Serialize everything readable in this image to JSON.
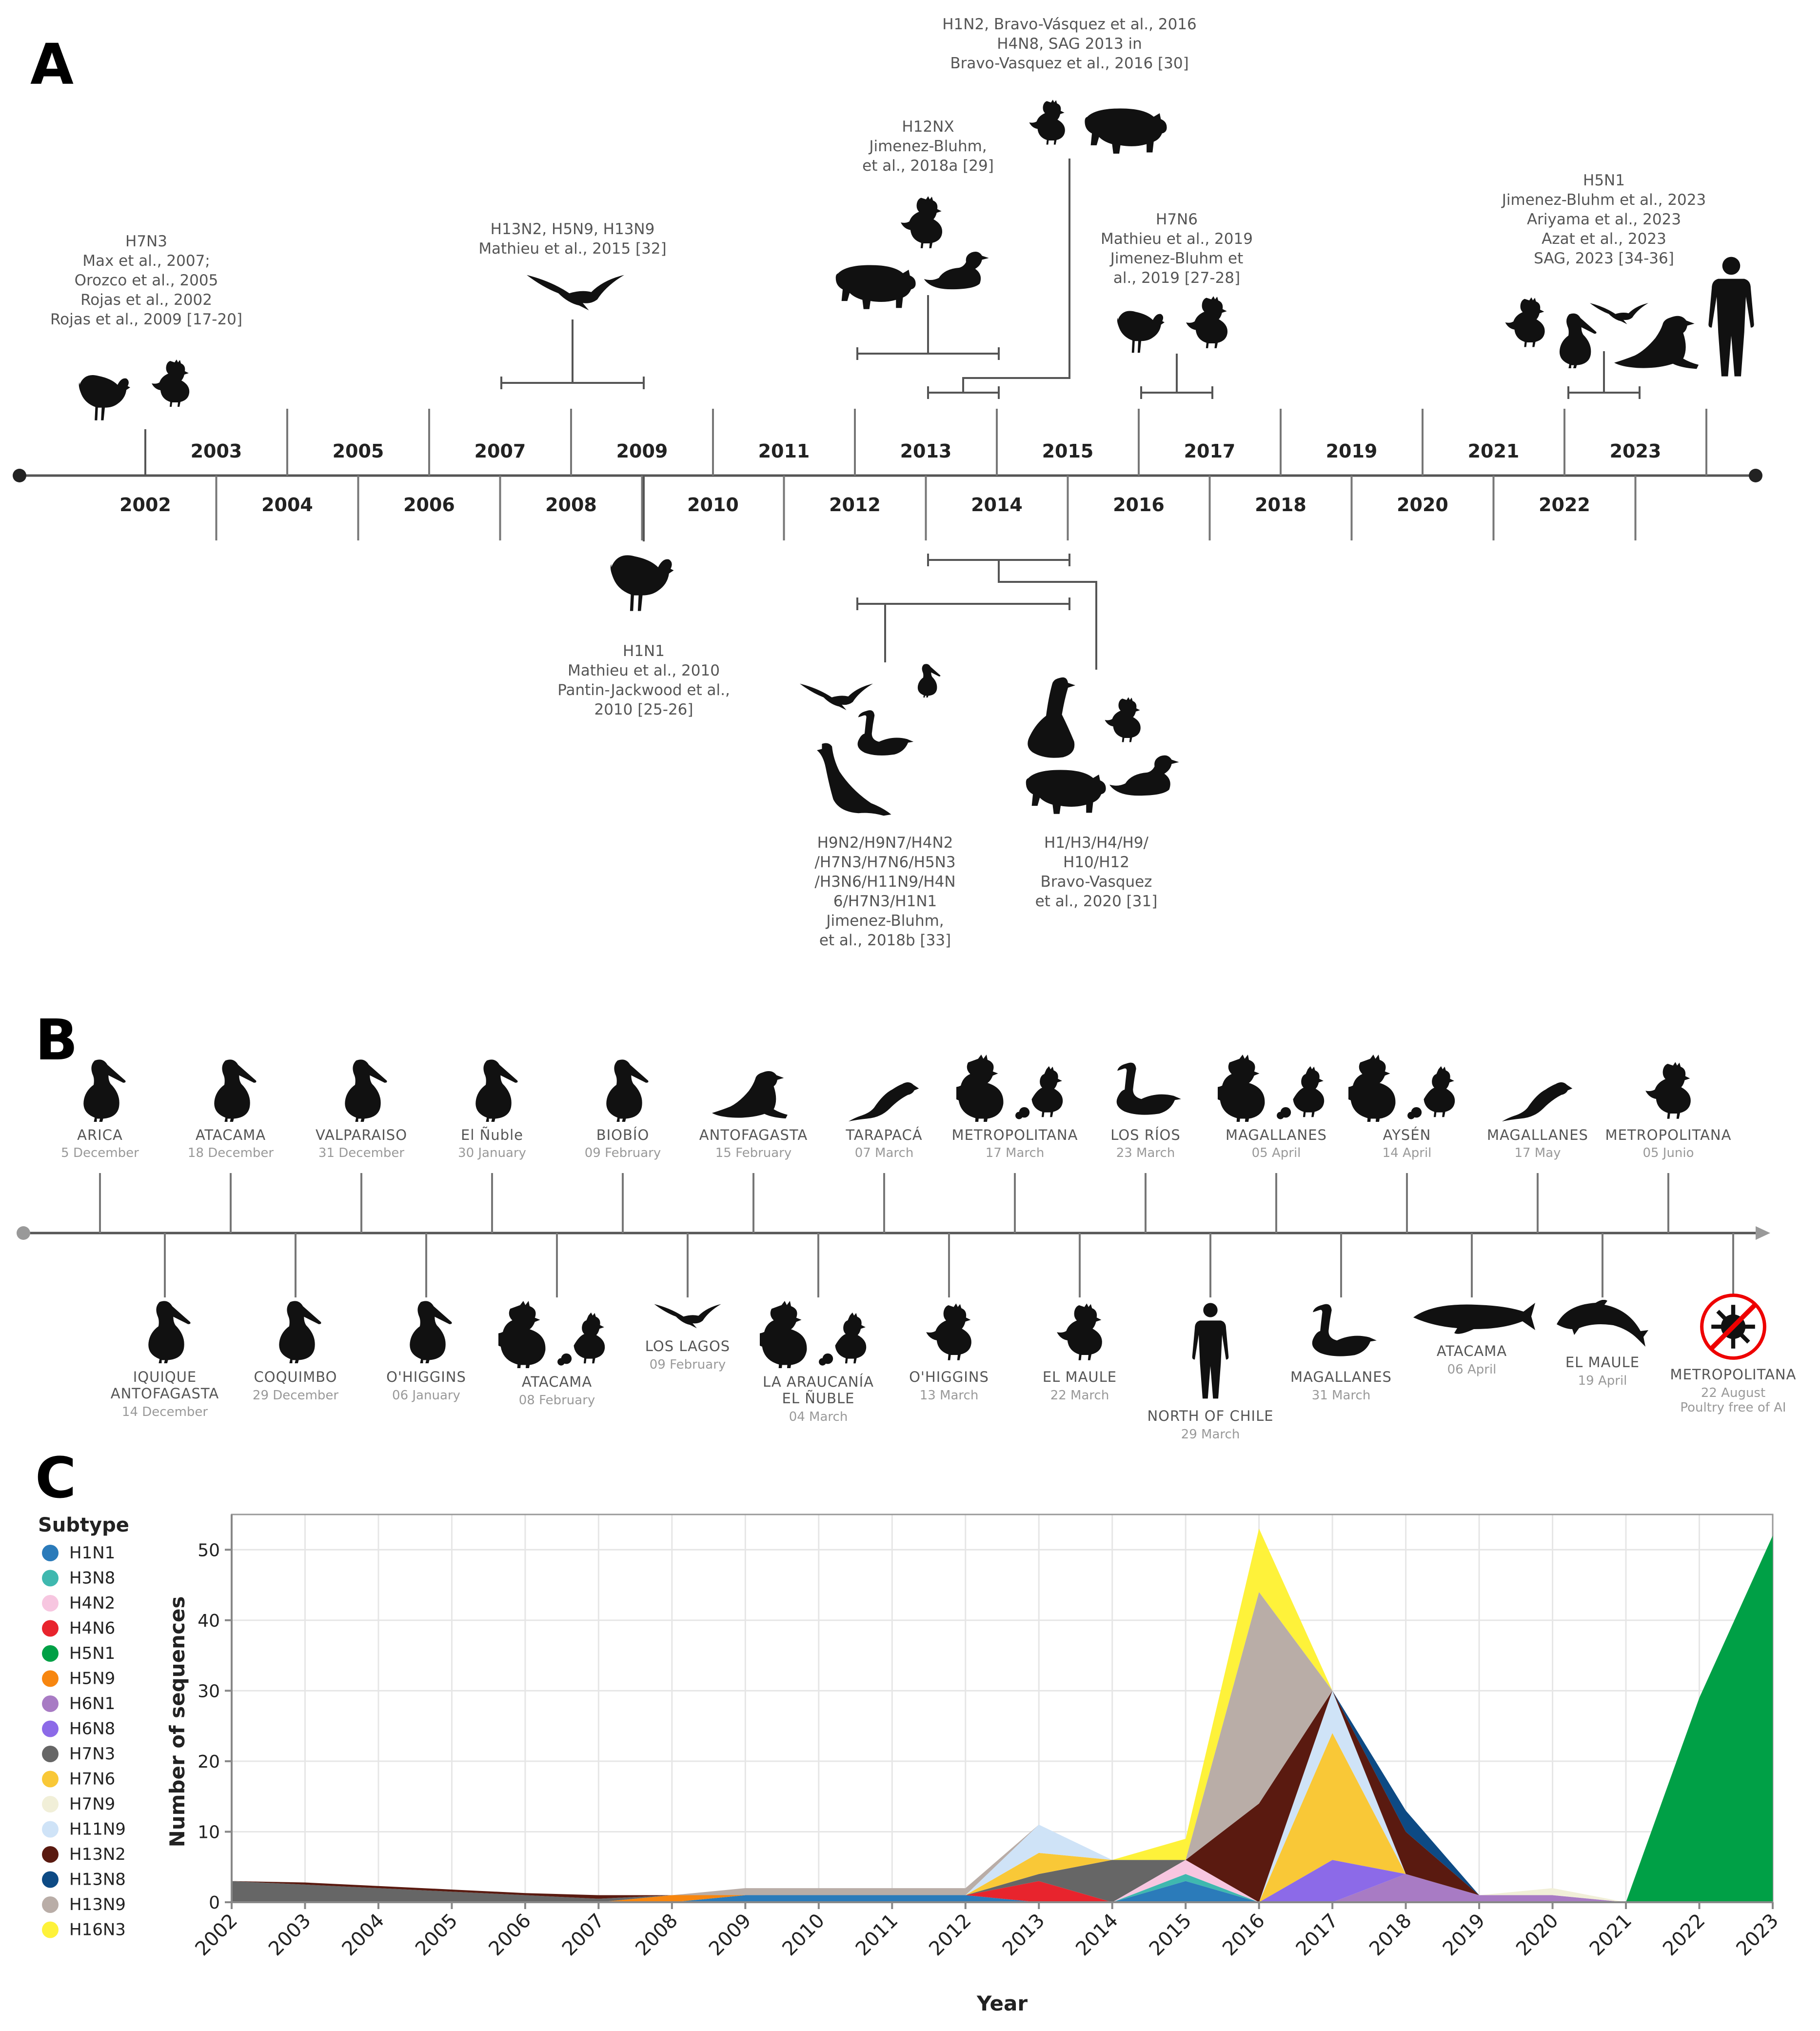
{
  "panels": {
    "a": "A",
    "b": "B",
    "c": "C"
  },
  "timeline_a": {
    "years_top": [
      "2003",
      "2005",
      "2007",
      "2009",
      "2011",
      "2013",
      "2015",
      "2017",
      "2019",
      "2021",
      "2023"
    ],
    "years_bottom": [
      "2002",
      "2004",
      "2006",
      "2008",
      "2010",
      "2012",
      "2014",
      "2016",
      "2018",
      "2020",
      "2022"
    ],
    "events": [
      {
        "lines": [
          "H7N3",
          "Max et al., 2007;",
          "Orozco et al., 2005",
          "Rojas et al., 2002",
          "Rojas et al., 2009 [17-20]"
        ],
        "animals": [
          "turkey-icon",
          "chicken-icon"
        ]
      },
      {
        "lines": [
          "H13N2, H5N9, H13N9",
          "Mathieu et al., 2015 [32]"
        ],
        "animals": [
          "gull-icon"
        ]
      },
      {
        "lines": [
          "H12NX",
          "Jimenez-Bluhm,",
          "et al., 2018a [29]"
        ],
        "animals": [
          "chicken-icon",
          "pig-icon",
          "duck-icon"
        ]
      },
      {
        "lines": [
          "H1N2, Bravo-Vásquez et al., 2016",
          "H4N8, SAG 2013 in",
          "Bravo-Vasquez et al., 2016 [30]"
        ],
        "animals": [
          "chicken-icon",
          "pig-icon"
        ]
      },
      {
        "lines": [
          "H7N6",
          "Mathieu et al., 2019",
          "Jimenez-Bluhm et",
          "al., 2019 [27-28]"
        ],
        "animals": [
          "turkey-icon",
          "chicken-icon"
        ]
      },
      {
        "lines": [
          "H5N1",
          "Jimenez-Bluhm et al., 2023",
          "Ariyama et al., 2023",
          "Azat et al., 2023",
          "SAG, 2023 [34-36]"
        ],
        "animals": [
          "chicken-icon",
          "pelican-icon",
          "gull-icon",
          "sea-lion-icon",
          "human-icon"
        ]
      },
      {
        "lines": [
          "H1N1",
          "Mathieu et al., 2010",
          "Pantin-Jackwood et al.,",
          "2010 [25-26]"
        ],
        "animals": [
          "turkey-icon"
        ]
      },
      {
        "lines": [
          "H9N2/H9N7/H4N2",
          "/H7N3/H7N6/H5N3",
          "/H3N6/H11N9/H4N",
          "6/H7N3/H1N1",
          "Jimenez-Bluhm,",
          "et al., 2018b [33]"
        ],
        "animals": [
          "gull-icon",
          "pelican-icon",
          "swan-icon",
          "cormorant-icon"
        ]
      },
      {
        "lines": [
          "H1/H3/H4/H9/",
          "H10/H12",
          "Bravo-Vasquez",
          "et al., 2020 [31]"
        ],
        "animals": [
          "goose-icon",
          "chicken-icon",
          "pig-icon",
          "duck-icon"
        ]
      }
    ]
  },
  "timeline_b": {
    "top": [
      {
        "loc": [
          "ARICA"
        ],
        "date": "5 December",
        "animal": "pelican-icon"
      },
      {
        "loc": [
          "ATACAMA"
        ],
        "date": "18 December",
        "animal": "pelican-icon"
      },
      {
        "loc": [
          "VALPARAISO"
        ],
        "date": "31 December",
        "animal": "pelican-icon"
      },
      {
        "loc": [
          "El Ñuble"
        ],
        "date": "30 January",
        "animal": "pelican-icon"
      },
      {
        "loc": [
          "BIOBÍO"
        ],
        "date": "09 February",
        "animal": "pelican-icon"
      },
      {
        "loc": [
          "ANTOFAGASTA"
        ],
        "date": "15 February",
        "animal": "sea-lion-icon"
      },
      {
        "loc": [
          "TARAPACÁ"
        ],
        "date": "07 March",
        "animal": "otter-icon"
      },
      {
        "loc": [
          "METROPOLITANA"
        ],
        "date": "17 March",
        "animal": "poultry-icon"
      },
      {
        "loc": [
          "LOS RÍOS"
        ],
        "date": "23 March",
        "animal": "swan-icon"
      },
      {
        "loc": [
          "MAGALLANES"
        ],
        "date": "05 April",
        "animal": "poultry-icon"
      },
      {
        "loc": [
          "AYSÉN"
        ],
        "date": "14 April",
        "animal": "poultry-icon"
      },
      {
        "loc": [
          "MAGALLANES"
        ],
        "date": "17 May",
        "animal": "otter-icon"
      },
      {
        "loc": [
          "METROPOLITANA"
        ],
        "date": "05 Junio",
        "animal": "chicken-icon"
      }
    ],
    "bottom": [
      {
        "loc": [
          "IQUIQUE",
          "ANTOFAGASTA"
        ],
        "date": "14 December",
        "animal": "pelican-icon"
      },
      {
        "loc": [
          "COQUIMBO"
        ],
        "date": "29 December",
        "animal": "pelican-icon"
      },
      {
        "loc": [
          "O'HIGGINS"
        ],
        "date": "06 January",
        "animal": "pelican-icon"
      },
      {
        "loc": [
          "ATACAMA"
        ],
        "date": "08 February",
        "animal": "poultry-icon"
      },
      {
        "loc": [
          "LOS LAGOS"
        ],
        "date": "09 February",
        "animal": "gull-icon"
      },
      {
        "loc": [
          "LA ARAUCANÍA",
          "EL ÑUBLE"
        ],
        "date": "04 March",
        "animal": "poultry-icon"
      },
      {
        "loc": [
          "O'HIGGINS"
        ],
        "date": "13 March",
        "animal": "chicken-icon"
      },
      {
        "loc": [
          "EL MAULE"
        ],
        "date": "22 March",
        "animal": "chicken-icon"
      },
      {
        "loc": [
          "NORTH OF CHILE"
        ],
        "date": "29 March",
        "animal": "human-icon"
      },
      {
        "loc": [
          "MAGALLANES"
        ],
        "date": "31 March",
        "animal": "swan-icon"
      },
      {
        "loc": [
          "ATACAMA"
        ],
        "date": "06 April",
        "animal": "whale-icon"
      },
      {
        "loc": [
          "EL MAULE"
        ],
        "date": "19 April",
        "animal": "dolphin-icon"
      },
      {
        "loc": [
          "METROPOLITANA"
        ],
        "date": "22 August",
        "date2": "Poultry free of AI",
        "animal": "no-virus-icon"
      }
    ]
  },
  "chart_data": {
    "type": "area",
    "stacked": true,
    "xlabel": "Year",
    "ylabel": "Number of sequences",
    "ylim": [
      0,
      55
    ],
    "yticks": [
      0,
      10,
      20,
      30,
      40,
      50
    ],
    "legend_title": "Subtype",
    "legend_position": "left",
    "grid": true,
    "x": [
      2002,
      2003,
      2004,
      2005,
      2006,
      2007,
      2008,
      2009,
      2010,
      2011,
      2012,
      2013,
      2014,
      2015,
      2016,
      2017,
      2018,
      2019,
      2020,
      2021,
      2022,
      2023
    ],
    "series": [
      {
        "name": "H1N1",
        "color": "#2b7bba",
        "values": [
          0,
          0,
          0,
          0,
          0,
          0,
          0,
          1,
          1,
          1,
          1,
          0,
          0,
          3,
          0,
          0,
          0,
          0,
          0,
          0,
          0,
          0
        ]
      },
      {
        "name": "H3N8",
        "color": "#3fb8af",
        "values": [
          0,
          0,
          0,
          0,
          0,
          0,
          0,
          0,
          0,
          0,
          0,
          0,
          0,
          1,
          0,
          0,
          0,
          0,
          0,
          0,
          0,
          0
        ]
      },
      {
        "name": "H4N2",
        "color": "#f7c6e0",
        "values": [
          0,
          0,
          0,
          0,
          0,
          0,
          0,
          0,
          0,
          0,
          0,
          0,
          0,
          2,
          0,
          0,
          0,
          0,
          0,
          0,
          0,
          0
        ]
      },
      {
        "name": "H4N6",
        "color": "#e8242d",
        "values": [
          0,
          0,
          0,
          0,
          0,
          0,
          0,
          0,
          0,
          0,
          0,
          3,
          0,
          0,
          0,
          0,
          0,
          0,
          0,
          0,
          0,
          0
        ]
      },
      {
        "name": "H5N1",
        "color": "#00a046",
        "values": [
          0,
          0,
          0,
          0,
          0,
          0,
          0,
          0,
          0,
          0,
          0,
          0,
          0,
          0,
          0,
          0,
          0,
          0,
          0,
          0,
          29,
          52
        ]
      },
      {
        "name": "H5N9",
        "color": "#f7860f",
        "values": [
          0,
          0,
          0,
          0,
          0,
          0,
          1,
          0,
          0,
          0,
          0,
          0,
          0,
          0,
          0,
          0,
          0,
          0,
          0,
          0,
          0,
          0
        ]
      },
      {
        "name": "H6N1",
        "color": "#a87bc4",
        "values": [
          0,
          0,
          0,
          0,
          0,
          0,
          0,
          0,
          0,
          0,
          0,
          0,
          0,
          0,
          0,
          0,
          4,
          1,
          1,
          0,
          0,
          0
        ]
      },
      {
        "name": "H6N8",
        "color": "#8c6ae8",
        "values": [
          0,
          0,
          0,
          0,
          0,
          0,
          0,
          0,
          0,
          0,
          0,
          0,
          0,
          0,
          0,
          6,
          0,
          0,
          0,
          0,
          0,
          0
        ]
      },
      {
        "name": "H7N3",
        "color": "#666666",
        "values": [
          3,
          2.5,
          2,
          1.5,
          1,
          0.5,
          0,
          0,
          0,
          0,
          0,
          1,
          6,
          0,
          0,
          0,
          0,
          0,
          0,
          0,
          0,
          0
        ]
      },
      {
        "name": "H7N6",
        "color": "#f9c837",
        "values": [
          0,
          0,
          0,
          0,
          0,
          0,
          0,
          0,
          0,
          0,
          0,
          3,
          0,
          0,
          0,
          18,
          0,
          0,
          0,
          0,
          0,
          0
        ]
      },
      {
        "name": "H7N9",
        "color": "#f1efd8",
        "values": [
          0,
          0,
          0,
          0,
          0,
          0,
          0,
          0,
          0,
          0,
          0,
          0,
          0,
          0,
          0,
          0,
          0,
          0,
          1,
          0,
          0,
          0
        ]
      },
      {
        "name": "H11N9",
        "color": "#cfe3f7",
        "values": [
          0,
          0,
          0,
          0,
          0,
          0,
          0,
          0,
          0,
          0,
          0,
          4,
          0,
          0,
          0,
          6,
          0,
          0,
          0,
          0,
          0,
          0
        ]
      },
      {
        "name": "H13N2",
        "color": "#5a1a10",
        "values": [
          0,
          0.3,
          0.3,
          0.3,
          0.3,
          0.5,
          0,
          0,
          0,
          0,
          0,
          0,
          0,
          0,
          14,
          0,
          6,
          0,
          0,
          0,
          0,
          0
        ]
      },
      {
        "name": "H13N8",
        "color": "#0d4a84",
        "values": [
          0,
          0,
          0,
          0,
          0,
          0,
          0,
          0,
          0,
          0,
          0,
          0,
          0,
          0,
          0,
          0,
          3,
          0,
          0,
          0,
          0,
          0
        ]
      },
      {
        "name": "H13N9",
        "color": "#b9ada7",
        "values": [
          0,
          0,
          0,
          0,
          0,
          0,
          0,
          1,
          1,
          1,
          1,
          0,
          0,
          0,
          30,
          0,
          0,
          0,
          0,
          0,
          0,
          0
        ]
      },
      {
        "name": "H16N3",
        "color": "#fef23a",
        "values": [
          0,
          0,
          0,
          0,
          0,
          0,
          0,
          0,
          0,
          0,
          0,
          0,
          0,
          3,
          9,
          0,
          0,
          0,
          0,
          0,
          0,
          0
        ]
      }
    ]
  }
}
